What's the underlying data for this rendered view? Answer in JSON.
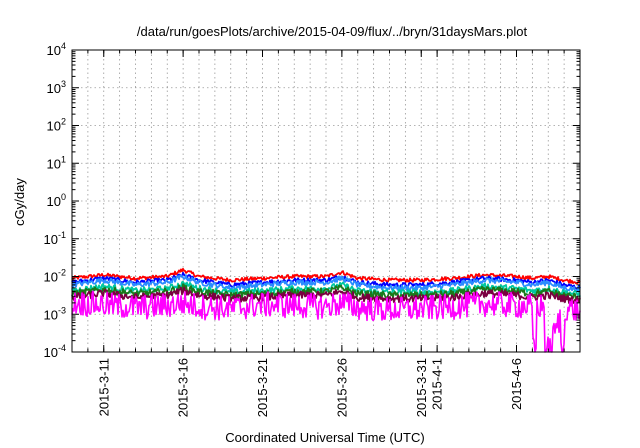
{
  "chart_data": {
    "type": "line",
    "title": "/data/run/goesPlots/archive/2015-04-09/flux/../bryn/31daysMars.plot",
    "xlabel": "Coordinated Universal Time (UTC)",
    "ylabel": "cGy/day",
    "yscale": "log",
    "ylim": [
      0.0001,
      10000
    ],
    "y_ticks": [
      {
        "value": 0.0001,
        "base": "10",
        "exp": "-4"
      },
      {
        "value": 0.001,
        "base": "10",
        "exp": "-3"
      },
      {
        "value": 0.01,
        "base": "10",
        "exp": "-2"
      },
      {
        "value": 0.1,
        "base": "10",
        "exp": "-1"
      },
      {
        "value": 1,
        "base": "10",
        "exp": "0"
      },
      {
        "value": 10,
        "base": "10",
        "exp": "1"
      },
      {
        "value": 100,
        "base": "10",
        "exp": "2"
      },
      {
        "value": 1000,
        "base": "10",
        "exp": "3"
      },
      {
        "value": 10000,
        "base": "10",
        "exp": "4"
      }
    ],
    "xlim": [
      "2015-03-09",
      "2015-04-10"
    ],
    "x_ticks": [
      "2015-3-11",
      "2015-3-16",
      "2015-3-21",
      "2015-3-26",
      "2015-3-31",
      "2015-4-1",
      "2015-4-6"
    ],
    "x_tick_dates": [
      "2015-03-11",
      "2015-03-16",
      "2015-03-21",
      "2015-03-26",
      "2015-03-31",
      "2015-04-01",
      "2015-04-06"
    ],
    "grid": true,
    "x": [
      "2015-03-09",
      "2015-03-11",
      "2015-03-13",
      "2015-03-15",
      "2015-03-16",
      "2015-03-17",
      "2015-03-19",
      "2015-03-21",
      "2015-03-23",
      "2015-03-25",
      "2015-03-26",
      "2015-03-27",
      "2015-03-29",
      "2015-03-31",
      "2015-04-02",
      "2015-04-04",
      "2015-04-06",
      "2015-04-07",
      "2015-04-08",
      "2015-04-09",
      "2015-04-10"
    ],
    "series": [
      {
        "color": "#ff0000",
        "values": [
          0.009,
          0.011,
          0.009,
          0.01,
          0.015,
          0.01,
          0.008,
          0.009,
          0.01,
          0.01,
          0.013,
          0.009,
          0.008,
          0.008,
          0.009,
          0.011,
          0.01,
          0.009,
          0.01,
          0.008,
          0.007
        ]
      },
      {
        "color": "#0000ff",
        "values": [
          0.007,
          0.009,
          0.007,
          0.008,
          0.011,
          0.008,
          0.006,
          0.007,
          0.008,
          0.008,
          0.01,
          0.007,
          0.006,
          0.006,
          0.007,
          0.009,
          0.008,
          0.007,
          0.008,
          0.006,
          0.005
        ]
      },
      {
        "color": "#2a8cff",
        "values": [
          0.006,
          0.008,
          0.006,
          0.007,
          0.01,
          0.007,
          0.005,
          0.006,
          0.007,
          0.007,
          0.009,
          0.006,
          0.005,
          0.005,
          0.006,
          0.008,
          0.007,
          0.006,
          0.007,
          0.005,
          0.0045
        ]
      },
      {
        "color": "#00c8a0",
        "values": [
          0.0042,
          0.0055,
          0.0042,
          0.0048,
          0.0065,
          0.0048,
          0.0038,
          0.0042,
          0.0048,
          0.0048,
          0.006,
          0.0042,
          0.0038,
          0.0038,
          0.0042,
          0.0055,
          0.0048,
          0.0042,
          0.0048,
          0.0038,
          0.0034
        ]
      },
      {
        "color": "#1a7a1a",
        "values": [
          0.0035,
          0.0045,
          0.0035,
          0.004,
          0.0052,
          0.004,
          0.0032,
          0.0035,
          0.004,
          0.004,
          0.005,
          0.0035,
          0.0032,
          0.0032,
          0.0035,
          0.0045,
          0.004,
          0.0035,
          0.004,
          0.0032,
          0.0028
        ]
      },
      {
        "color": "#7a0040",
        "values": [
          0.0028,
          0.0036,
          0.0028,
          0.0032,
          0.0042,
          0.0032,
          0.0026,
          0.0028,
          0.0032,
          0.0032,
          0.004,
          0.0028,
          0.0026,
          0.0026,
          0.0028,
          0.0036,
          0.0032,
          0.0028,
          0.0032,
          0.0026,
          0.0023
        ]
      },
      {
        "color": "#ff00ff",
        "values": [
          0.002,
          0.0018,
          0.0015,
          0.0017,
          0.002,
          0.0016,
          0.0014,
          0.0018,
          0.0017,
          0.0016,
          0.002,
          0.0015,
          0.0013,
          0.0014,
          0.0016,
          0.0019,
          0.0017,
          0.0016,
          0.00012,
          0.0015,
          0.0012
        ]
      }
    ]
  }
}
